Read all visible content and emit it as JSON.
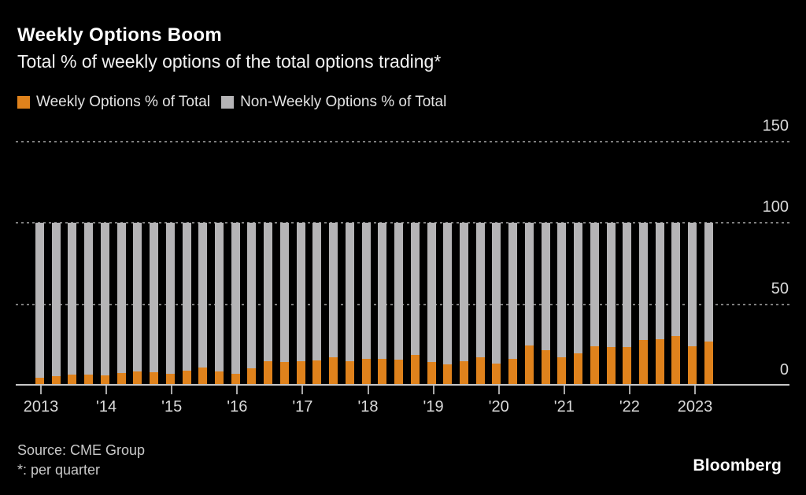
{
  "header": {
    "title": "Weekly Options Boom",
    "subtitle": "Total % of weekly options of the total options trading*"
  },
  "legend": {
    "items": [
      {
        "label": "Weekly Options % of Total",
        "color": "#DF821C"
      },
      {
        "label": "Non-Weekly Options % of Total",
        "color": "#B5B4B6"
      }
    ]
  },
  "footer": {
    "source": "Source: CME Group",
    "footnote": "*: per quarter",
    "brand": "Bloomberg"
  },
  "chart_data": {
    "type": "bar",
    "stacked": true,
    "title": "Weekly Options Boom",
    "subtitle": "Total % of weekly options of the total options trading*",
    "xlabel": "",
    "ylabel": "",
    "ylim": [
      0,
      150
    ],
    "grid": "dotted-horizontal",
    "legend_position": "top-left",
    "y_ticks": [
      0,
      50,
      100,
      150
    ],
    "y_tick_labels": [
      "0",
      "50",
      "100",
      "150"
    ],
    "x_tick_labels": [
      "2013",
      "'14",
      "'15",
      "'16",
      "'17",
      "'18",
      "'19",
      "'20",
      "'21",
      "'22",
      "2023"
    ],
    "categories": [
      "2013 Q1",
      "2013 Q2",
      "2013 Q3",
      "2013 Q4",
      "2014 Q1",
      "2014 Q2",
      "2014 Q3",
      "2014 Q4",
      "2015 Q1",
      "2015 Q2",
      "2015 Q3",
      "2015 Q4",
      "2016 Q1",
      "2016 Q2",
      "2016 Q3",
      "2016 Q4",
      "2017 Q1",
      "2017 Q2",
      "2017 Q3",
      "2017 Q4",
      "2018 Q1",
      "2018 Q2",
      "2018 Q3",
      "2018 Q4",
      "2019 Q1",
      "2019 Q2",
      "2019 Q3",
      "2019 Q4",
      "2020 Q1",
      "2020 Q2",
      "2020 Q3",
      "2020 Q4",
      "2021 Q1",
      "2021 Q2",
      "2021 Q3",
      "2021 Q4",
      "2022 Q1",
      "2022 Q2",
      "2022 Q3",
      "2022 Q4",
      "2023 Q1",
      "2023 Q2"
    ],
    "series": [
      {
        "name": "Weekly Options % of Total",
        "color": "#DF821C",
        "values": [
          4.8,
          5.8,
          6.6,
          6.9,
          6.2,
          7.7,
          8.6,
          8.2,
          7.2,
          9.3,
          10.9,
          8.6,
          7.2,
          10.5,
          14.9,
          14.7,
          14.9,
          15.5,
          17.6,
          15.2,
          16.5,
          16.2,
          16.0,
          18.9,
          14.7,
          13.1,
          15.2,
          17.6,
          13.6,
          16.5,
          24.5,
          21.6,
          17.6,
          20.0,
          24.3,
          23.7,
          23.7,
          28.0,
          28.3,
          30.4,
          24.0,
          27.2
        ]
      },
      {
        "name": "Non-Weekly Options % of Total",
        "color": "#B5B4B6",
        "values": [
          95.2,
          94.2,
          93.4,
          93.1,
          93.8,
          92.3,
          91.4,
          91.8,
          92.8,
          90.7,
          89.1,
          91.4,
          92.8,
          89.5,
          85.1,
          85.3,
          85.1,
          84.5,
          82.4,
          84.8,
          83.5,
          83.8,
          84.0,
          81.1,
          85.3,
          86.9,
          84.8,
          82.4,
          86.4,
          83.5,
          75.5,
          78.4,
          82.4,
          80.0,
          75.7,
          76.3,
          76.3,
          72.0,
          71.7,
          69.6,
          76.0,
          72.8
        ]
      }
    ]
  }
}
